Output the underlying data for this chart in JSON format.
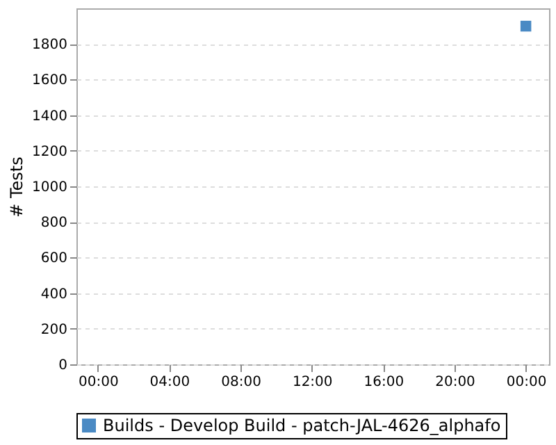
{
  "chart_data": {
    "type": "scatter",
    "ylabel": "# Tests",
    "x": [
      24
    ],
    "series": [
      {
        "name": "Builds - Develop Build - patch-JAL-4626_alphafo",
        "color": "#4a8ac4",
        "values": [
          1900
        ]
      }
    ],
    "xlim": [
      -1.2,
      25.3
    ],
    "xticks": [
      {
        "value": 0,
        "label": "00:00"
      },
      {
        "value": 4,
        "label": "04:00"
      },
      {
        "value": 8,
        "label": "08:00"
      },
      {
        "value": 12,
        "label": "12:00"
      },
      {
        "value": 16,
        "label": "16:00"
      },
      {
        "value": 20,
        "label": "20:00"
      },
      {
        "value": 24,
        "label": "00:00"
      }
    ],
    "ylim": [
      0,
      2000
    ],
    "yticks": [
      0,
      200,
      400,
      600,
      800,
      1000,
      1200,
      1400,
      1600,
      1800
    ],
    "grid": "y",
    "legend": "bottom",
    "marker": "square"
  }
}
